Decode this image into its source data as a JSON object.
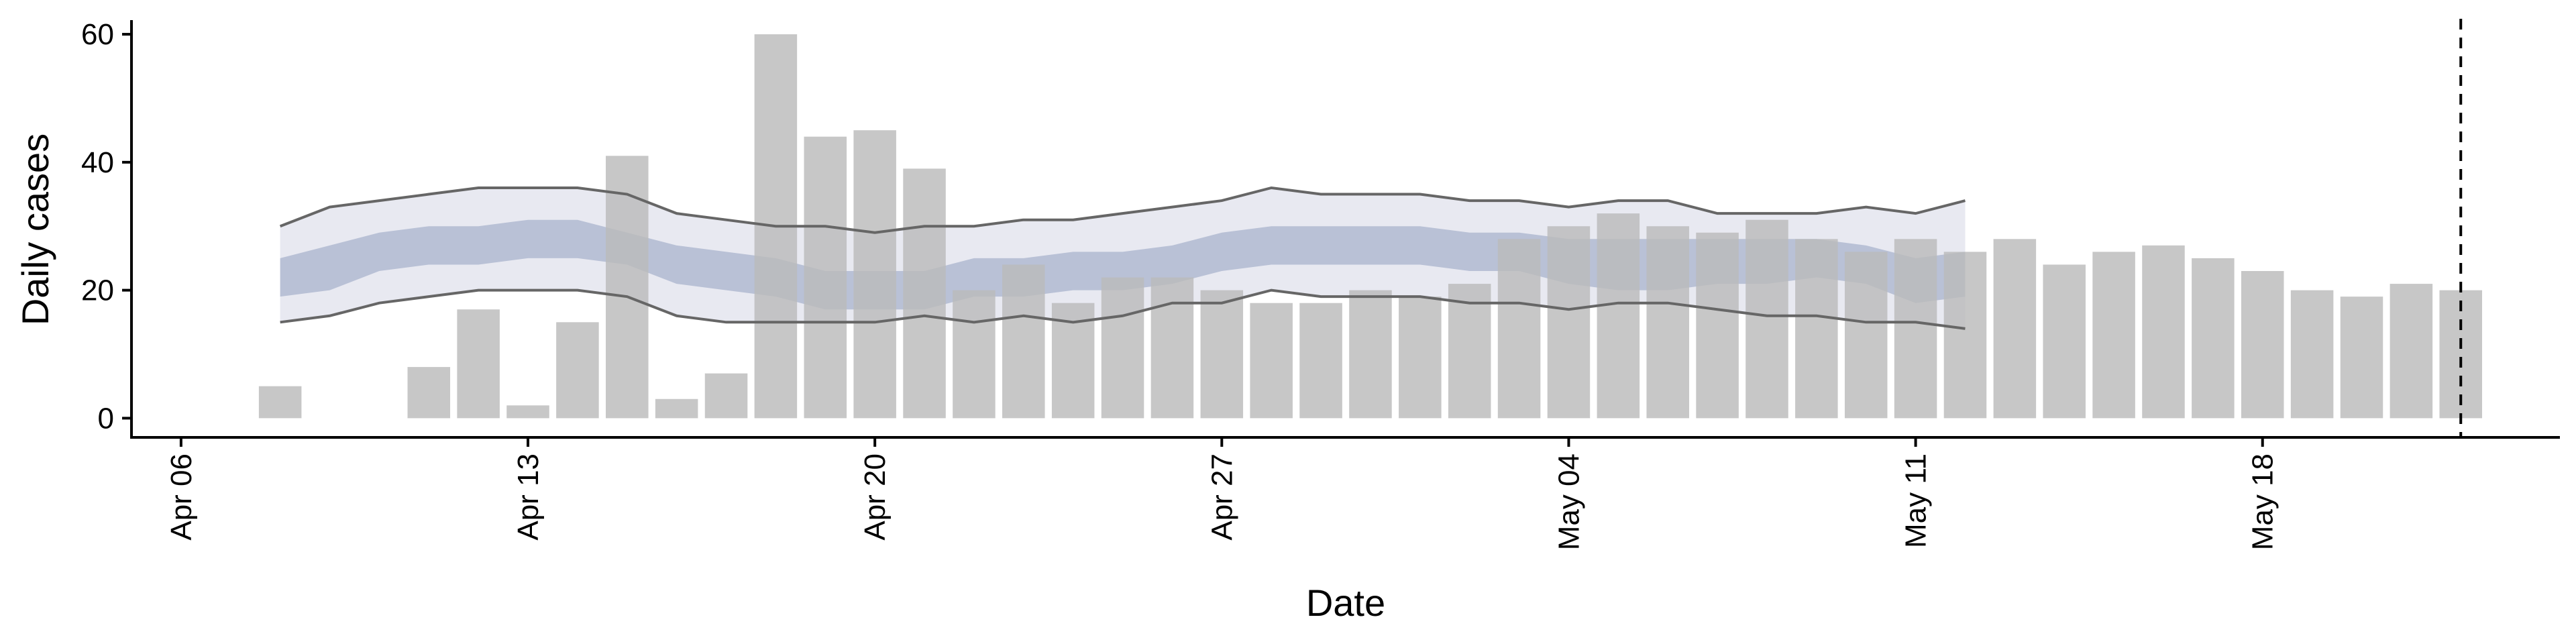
{
  "chart_data": {
    "type": "bar",
    "xlabel": "Date",
    "ylabel": "Daily cases",
    "ylim": [
      0,
      60
    ],
    "yticks": [
      0,
      20,
      40,
      60
    ],
    "xlim": [
      "2020-04-05",
      "2020-05-24"
    ],
    "x_ticks": [
      {
        "date": "2020-04-06",
        "label": "Apr 06"
      },
      {
        "date": "2020-04-13",
        "label": "Apr 13"
      },
      {
        "date": "2020-04-20",
        "label": "Apr 20"
      },
      {
        "date": "2020-04-27",
        "label": "Apr 27"
      },
      {
        "date": "2020-05-04",
        "label": "May 04"
      },
      {
        "date": "2020-05-11",
        "label": "May 11"
      },
      {
        "date": "2020-05-18",
        "label": "May 18"
      }
    ],
    "bars": {
      "color": "#bbbbbb",
      "dates": [
        "2020-04-08",
        "2020-04-09",
        "2020-04-10",
        "2020-04-11",
        "2020-04-12",
        "2020-04-13",
        "2020-04-14",
        "2020-04-15",
        "2020-04-16",
        "2020-04-17",
        "2020-04-18",
        "2020-04-19",
        "2020-04-20",
        "2020-04-21",
        "2020-04-22",
        "2020-04-23",
        "2020-04-24",
        "2020-04-25",
        "2020-04-26",
        "2020-04-27",
        "2020-04-28",
        "2020-04-29",
        "2020-04-30",
        "2020-05-01",
        "2020-05-02",
        "2020-05-03",
        "2020-05-04",
        "2020-05-05",
        "2020-05-06",
        "2020-05-07",
        "2020-05-08",
        "2020-05-09",
        "2020-05-10",
        "2020-05-11",
        "2020-05-12",
        "2020-05-13",
        "2020-05-14",
        "2020-05-15",
        "2020-05-16",
        "2020-05-17",
        "2020-05-18",
        "2020-05-19",
        "2020-05-20",
        "2020-05-21",
        "2020-05-22"
      ],
      "values": [
        5,
        0,
        0,
        8,
        17,
        2,
        15,
        41,
        3,
        7,
        60,
        44,
        45,
        39,
        20,
        24,
        18,
        22,
        22,
        20,
        18,
        18,
        20,
        19,
        21,
        28,
        30,
        32,
        30,
        29,
        31,
        28,
        26,
        28,
        26,
        28,
        24,
        26,
        27,
        25,
        23,
        20,
        19,
        21,
        20
      ]
    },
    "forecast": {
      "dates": [
        "2020-04-08",
        "2020-04-09",
        "2020-04-10",
        "2020-04-11",
        "2020-04-12",
        "2020-04-13",
        "2020-04-14",
        "2020-04-15",
        "2020-04-16",
        "2020-04-17",
        "2020-04-18",
        "2020-04-19",
        "2020-04-20",
        "2020-04-21",
        "2020-04-22",
        "2020-04-23",
        "2020-04-24",
        "2020-04-25",
        "2020-04-26",
        "2020-04-27",
        "2020-04-28",
        "2020-04-29",
        "2020-04-30",
        "2020-05-01",
        "2020-05-02",
        "2020-05-03",
        "2020-05-04",
        "2020-05-05",
        "2020-05-06",
        "2020-05-07",
        "2020-05-08",
        "2020-05-09",
        "2020-05-10",
        "2020-05-11",
        "2020-05-12"
      ],
      "outer_upper": [
        30,
        33,
        34,
        35,
        36,
        36,
        36,
        35,
        32,
        31,
        30,
        30,
        29,
        30,
        30,
        31,
        31,
        32,
        33,
        34,
        36,
        35,
        35,
        35,
        34,
        34,
        33,
        34,
        34,
        32,
        32,
        32,
        33,
        32,
        34
      ],
      "outer_lower": [
        15,
        16,
        18,
        19,
        20,
        20,
        20,
        19,
        16,
        15,
        15,
        15,
        15,
        16,
        15,
        16,
        15,
        16,
        18,
        18,
        20,
        19,
        19,
        19,
        18,
        18,
        17,
        18,
        18,
        17,
        16,
        16,
        15,
        15,
        14
      ],
      "inner_upper": [
        25,
        27,
        29,
        30,
        30,
        31,
        31,
        29,
        27,
        26,
        25,
        23,
        23,
        23,
        25,
        25,
        26,
        26,
        27,
        29,
        30,
        30,
        30,
        30,
        29,
        29,
        28,
        28,
        28,
        28,
        28,
        28,
        27,
        25,
        26
      ],
      "inner_lower": [
        19,
        20,
        23,
        24,
        24,
        25,
        25,
        24,
        21,
        20,
        19,
        17,
        17,
        17,
        19,
        19,
        20,
        20,
        21,
        23,
        24,
        24,
        24,
        24,
        23,
        23,
        21,
        20,
        20,
        21,
        21,
        22,
        21,
        18,
        19
      ],
      "outer_color": "#e8e9f1",
      "inner_color": "#b9c1d6",
      "line_color": "#666666"
    },
    "reference_line": {
      "date": "2020-05-22",
      "style": "dashed",
      "color": "#000000"
    },
    "grid": false,
    "legend": "none"
  }
}
